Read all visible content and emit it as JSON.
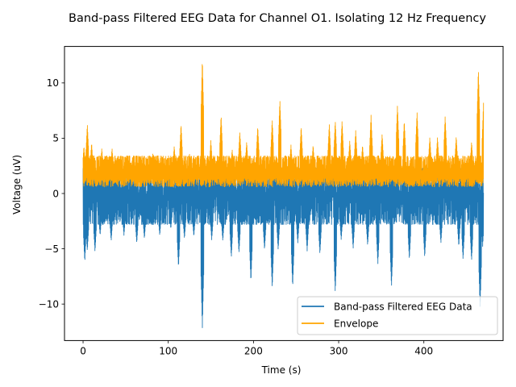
{
  "chart_data": {
    "type": "line",
    "title": "Band-pass Filtered EEG Data for Channel O1. Isolating 12 Hz Frequency",
    "xlabel": "Time (s)",
    "ylabel": "Voltage (uV)",
    "xlim": [
      -21.8,
      493.0
    ],
    "ylim": [
      -13.3,
      13.3
    ],
    "xticks": [
      0,
      100,
      200,
      300,
      400
    ],
    "xtick_labels": [
      "0",
      "100",
      "200",
      "300",
      "400"
    ],
    "yticks": [
      -10,
      -5,
      0,
      5,
      10
    ],
    "ytick_labels": [
      "−10",
      "−5",
      "0",
      "5",
      "10"
    ],
    "grid": false,
    "legend_position": "lower-right",
    "time_range": [
      0,
      470
    ],
    "series": [
      {
        "name": "Band-pass Filtered EEG Data",
        "color": "#1f77b4",
        "band": [
          -2.8,
          2.3
        ],
        "peaks": [
          [
            2,
            -6.2
          ],
          [
            5,
            -5.2
          ],
          [
            14,
            -5.3
          ],
          [
            20,
            -3.8
          ],
          [
            33,
            -4.3
          ],
          [
            48,
            -3.8
          ],
          [
            63,
            -4.5
          ],
          [
            72,
            -4.1
          ],
          [
            90,
            -3.8
          ],
          [
            103,
            -3.2
          ],
          [
            112,
            -6.7
          ],
          [
            119,
            -4.1
          ],
          [
            130,
            -3.9
          ],
          [
            140,
            -12.2
          ],
          [
            151,
            -4.2
          ],
          [
            164,
            -4.3
          ],
          [
            174,
            -5.8
          ],
          [
            183,
            -5.4
          ],
          [
            197,
            -8.0
          ],
          [
            213,
            -5.1
          ],
          [
            222,
            -8.6
          ],
          [
            229,
            -5.1
          ],
          [
            246,
            -8.5
          ],
          [
            252,
            -4.5
          ],
          [
            263,
            -5.2
          ],
          [
            278,
            -5.5
          ],
          [
            296,
            -9.0
          ],
          [
            303,
            -4.2
          ],
          [
            317,
            -5.0
          ],
          [
            334,
            -4.7
          ],
          [
            346,
            -6.4
          ],
          [
            362,
            -8.5
          ],
          [
            383,
            -6.0
          ],
          [
            401,
            -5.8
          ],
          [
            420,
            -4.5
          ],
          [
            441,
            -4.8
          ],
          [
            446,
            -6.0
          ],
          [
            456,
            -6.1
          ],
          [
            466,
            -10.5
          ],
          [
            469,
            -4.8
          ]
        ]
      },
      {
        "name": "Envelope",
        "color": "#ffa500",
        "band": [
          0.6,
          3.4
        ],
        "peaks": [
          [
            1,
            4.3
          ],
          [
            5,
            6.3
          ],
          [
            10,
            4.6
          ],
          [
            22,
            4.1
          ],
          [
            34,
            4.1
          ],
          [
            52,
            3.4
          ],
          [
            67,
            3.3
          ],
          [
            82,
            3.7
          ],
          [
            103,
            2.5
          ],
          [
            107,
            4.3
          ],
          [
            115,
            6.3
          ],
          [
            125,
            3.6
          ],
          [
            140,
            12.2
          ],
          [
            150,
            4.8
          ],
          [
            162,
            7.1
          ],
          [
            175,
            4.0
          ],
          [
            184,
            5.6
          ],
          [
            192,
            4.7
          ],
          [
            205,
            6.1
          ],
          [
            222,
            6.7
          ],
          [
            231,
            8.5
          ],
          [
            244,
            4.4
          ],
          [
            256,
            6.1
          ],
          [
            270,
            4.4
          ],
          [
            289,
            6.3
          ],
          [
            296,
            6.6
          ],
          [
            304,
            6.6
          ],
          [
            313,
            4.8
          ],
          [
            320,
            5.7
          ],
          [
            328,
            4.4
          ],
          [
            338,
            7.1
          ],
          [
            351,
            5.4
          ],
          [
            369,
            8.0
          ],
          [
            377,
            6.6
          ],
          [
            392,
            7.4
          ],
          [
            407,
            5.1
          ],
          [
            416,
            5.1
          ],
          [
            425,
            7.0
          ],
          [
            438,
            5.2
          ],
          [
            456,
            4.7
          ],
          [
            464,
            11.3
          ],
          [
            470,
            8.2
          ]
        ]
      }
    ]
  }
}
